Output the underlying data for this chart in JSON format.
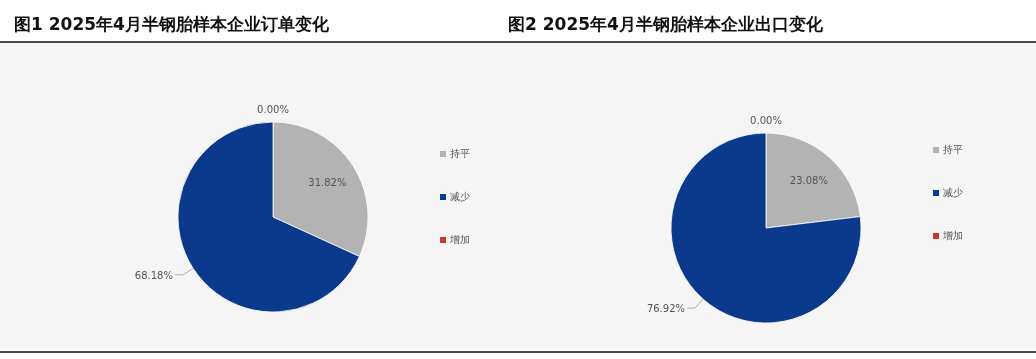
{
  "chart_data": [
    {
      "type": "pie",
      "title": "图1 2025年4月半钢胎样本企业订单变化",
      "categories": [
        "持平",
        "减少",
        "增加"
      ],
      "values": [
        31.82,
        68.18,
        0
      ],
      "colors": [
        "#b3b3b3",
        "#0b3a8c",
        "#c8372d"
      ],
      "value_labels": [
        "31.82%",
        "68.18%",
        "0.00%"
      ],
      "legend": "right"
    },
    {
      "type": "pie",
      "title": "图2 2025年4月半钢胎样本企业出口变化",
      "categories": [
        "持平",
        "减少",
        "增加"
      ],
      "values": [
        23.08,
        76.92,
        0
      ],
      "colors": [
        "#b3b3b3",
        "#0b3a8c",
        "#c8372d"
      ],
      "value_labels": [
        "23.08%",
        "76.92%",
        "0.00%"
      ],
      "legend": "right"
    }
  ]
}
